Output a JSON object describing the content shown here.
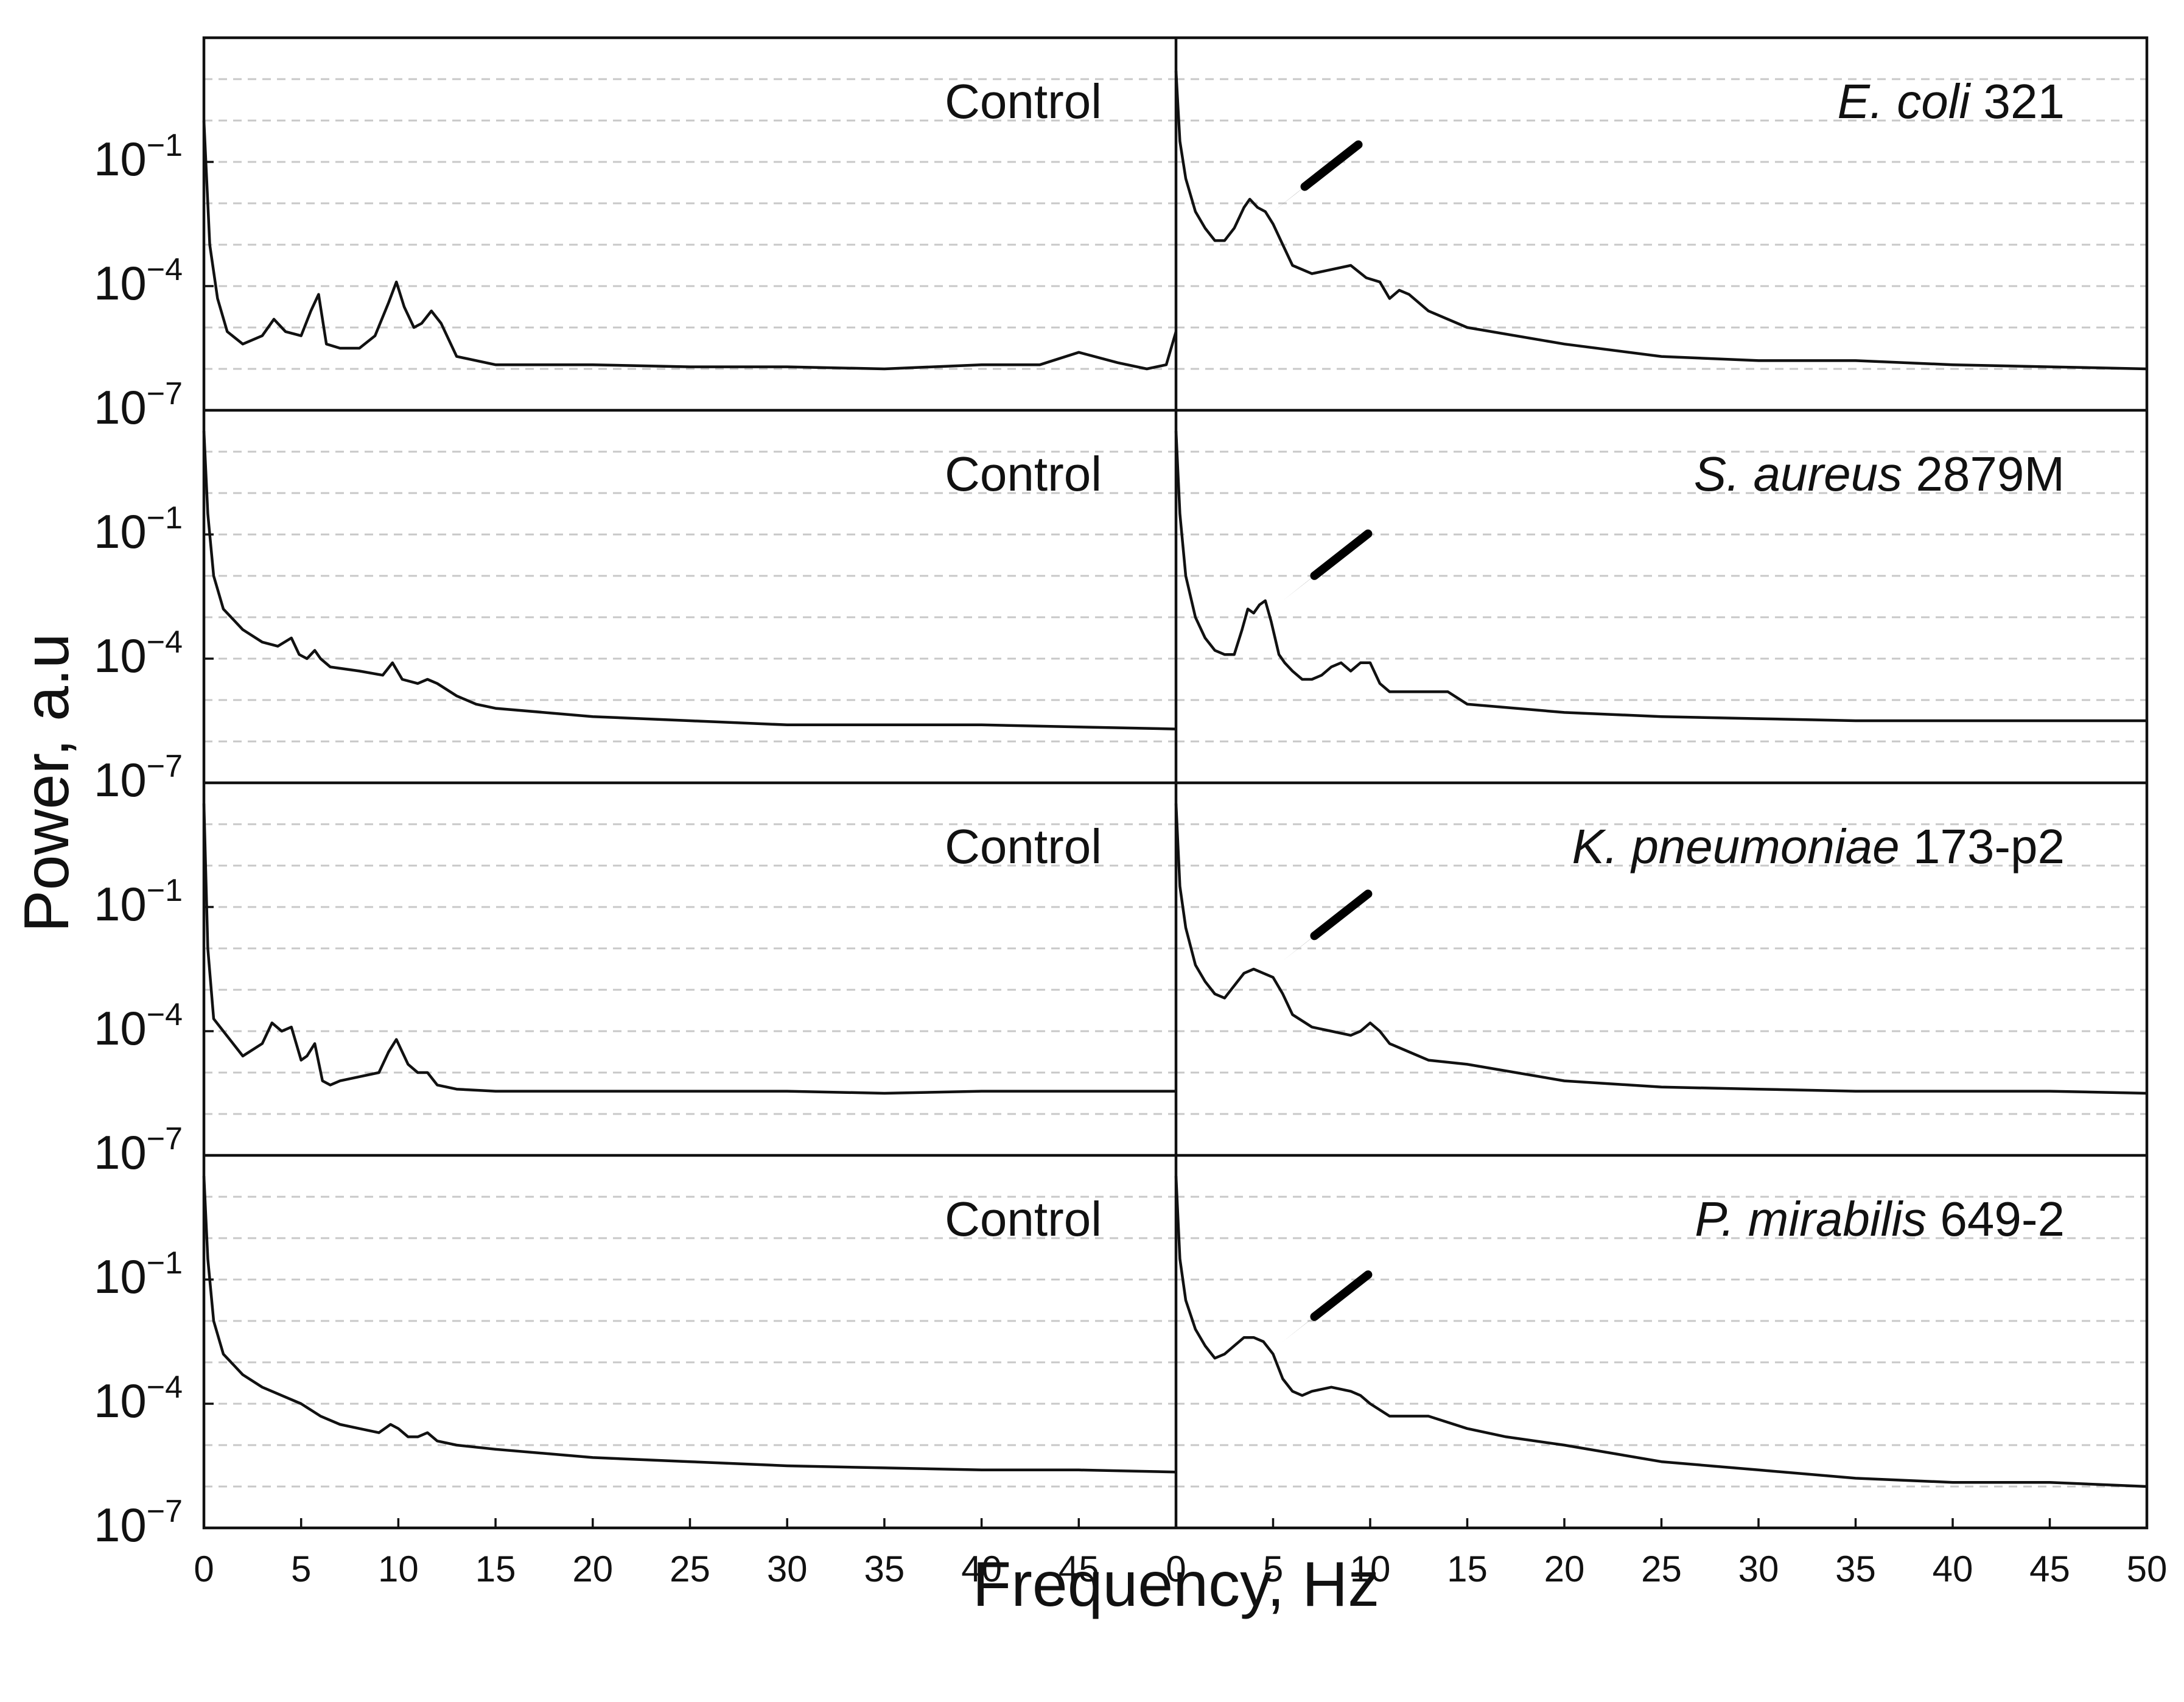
{
  "chart_data": {
    "type": "line",
    "figure": {
      "ylabel": "Power, a.u",
      "xlabel": "Frequency, Hz",
      "xlim": [
        0,
        50
      ],
      "ylim_log10": [
        -7,
        2
      ],
      "y_tick_labels": [
        {
          "base": "10",
          "exp": "−1",
          "log10": -1
        },
        {
          "base": "10",
          "exp": "−4",
          "log10": -4
        },
        {
          "base": "10",
          "exp": "−7",
          "log10": -7
        }
      ],
      "x_ticks_left": [
        {
          "label": "0",
          "value": 0
        },
        {
          "label": "5",
          "value": 5
        },
        {
          "label": "10",
          "value": 10
        },
        {
          "label": "15",
          "value": 15
        },
        {
          "label": "20",
          "value": 20
        },
        {
          "label": "25",
          "value": 25
        },
        {
          "label": "30",
          "value": 30
        },
        {
          "label": "35",
          "value": 35
        },
        {
          "label": "40",
          "value": 40
        },
        {
          "label": "45",
          "value": 45
        }
      ],
      "x_ticks_right": [
        {
          "label": "0",
          "value": 0
        },
        {
          "label": "5",
          "value": 5
        },
        {
          "label": "10",
          "value": 10
        },
        {
          "label": "15",
          "value": 15
        },
        {
          "label": "20",
          "value": 20
        },
        {
          "label": "25",
          "value": 25
        },
        {
          "label": "30",
          "value": 30
        },
        {
          "label": "35",
          "value": 35
        },
        {
          "label": "40",
          "value": 40
        },
        {
          "label": "45",
          "value": 45
        },
        {
          "label": "50",
          "value": 50
        }
      ],
      "grid_log10": [
        1,
        0,
        -1,
        -2,
        -3,
        -4,
        -5,
        -6
      ],
      "grid": "horizontal dashed"
    },
    "panels": [
      {
        "row": 1,
        "side": "left",
        "label": {
          "italic": "",
          "normal": "Control"
        },
        "arrow_at": null,
        "x": [
          0,
          0.3,
          0.7,
          1.2,
          2,
          3,
          3.6,
          4.2,
          5,
          5.5,
          5.9,
          6.3,
          7,
          8,
          8.8,
          9.5,
          9.9,
          10.3,
          10.8,
          11.2,
          11.7,
          12.2,
          13,
          15,
          20,
          25,
          30,
          35,
          40,
          43,
          45,
          47,
          48.5,
          49.5,
          50
        ],
        "log10y": [
          0,
          -3,
          -4.3,
          -5.1,
          -5.4,
          -5.2,
          -4.8,
          -5.1,
          -5.2,
          -4.6,
          -4.2,
          -5.4,
          -5.5,
          -5.5,
          -5.2,
          -4.4,
          -3.9,
          -4.5,
          -5,
          -4.9,
          -4.6,
          -4.9,
          -5.7,
          -5.9,
          -5.9,
          -5.95,
          -5.95,
          -6,
          -5.9,
          -5.9,
          -5.6,
          -5.85,
          -6,
          -5.9,
          -5.1
        ]
      },
      {
        "row": 1,
        "side": "right",
        "label": {
          "italic": "E. coli",
          "normal": " 321"
        },
        "arrow_at": {
          "x": 5,
          "log10y": -2.2
        },
        "x": [
          0,
          0.2,
          0.5,
          1,
          1.5,
          2,
          2.5,
          3,
          3.5,
          3.8,
          4.2,
          4.6,
          5,
          5.5,
          6,
          7,
          8,
          9,
          9.8,
          10.5,
          11,
          11.5,
          12,
          13,
          15,
          20,
          25,
          30,
          35,
          40,
          45,
          50
        ],
        "log10y": [
          1.2,
          -0.5,
          -1.4,
          -2.2,
          -2.6,
          -2.9,
          -2.9,
          -2.6,
          -2.1,
          -1.9,
          -2.1,
          -2.2,
          -2.5,
          -3,
          -3.5,
          -3.7,
          -3.6,
          -3.5,
          -3.8,
          -3.9,
          -4.3,
          -4.1,
          -4.2,
          -4.6,
          -5,
          -5.4,
          -5.7,
          -5.8,
          -5.8,
          -5.9,
          -5.95,
          -6
        ]
      },
      {
        "row": 2,
        "side": "left",
        "label": {
          "italic": "",
          "normal": "Control"
        },
        "arrow_at": null,
        "x": [
          0,
          0.2,
          0.5,
          1,
          2,
          3,
          3.8,
          4.5,
          4.9,
          5.3,
          5.7,
          6,
          6.5,
          8,
          9.2,
          9.7,
          10.2,
          11,
          11.5,
          12,
          13,
          14,
          15,
          20,
          25,
          30,
          35,
          40,
          45,
          50
        ],
        "log10y": [
          1.5,
          -0.5,
          -2,
          -2.8,
          -3.3,
          -3.6,
          -3.7,
          -3.5,
          -3.9,
          -4,
          -3.8,
          -4,
          -4.2,
          -4.3,
          -4.4,
          -4.1,
          -4.5,
          -4.6,
          -4.5,
          -4.6,
          -4.9,
          -5.1,
          -5.2,
          -5.4,
          -5.5,
          -5.6,
          -5.6,
          -5.6,
          -5.65,
          -5.7
        ]
      },
      {
        "row": 2,
        "side": "right",
        "label": {
          "italic": "S. aureus",
          "normal": " 2879M"
        },
        "arrow_at": {
          "x": 5.5,
          "log10y": -2.6
        },
        "x": [
          0,
          0.2,
          0.5,
          1,
          1.5,
          2,
          2.5,
          3,
          3.4,
          3.7,
          4,
          4.3,
          4.6,
          4.9,
          5.3,
          5.6,
          6,
          6.5,
          7,
          7.5,
          8,
          8.5,
          9,
          9.5,
          10,
          10.5,
          11,
          12,
          14,
          15,
          20,
          25,
          30,
          35,
          40,
          45,
          50
        ],
        "log10y": [
          1.5,
          -0.5,
          -2,
          -3,
          -3.5,
          -3.8,
          -3.9,
          -3.9,
          -3.3,
          -2.8,
          -2.9,
          -2.7,
          -2.6,
          -3.1,
          -3.9,
          -4.1,
          -4.3,
          -4.5,
          -4.5,
          -4.4,
          -4.2,
          -4.1,
          -4.3,
          -4.1,
          -4.1,
          -4.6,
          -4.8,
          -4.8,
          -4.8,
          -5.1,
          -5.3,
          -5.4,
          -5.45,
          -5.5,
          -5.5,
          -5.5,
          -5.5
        ]
      },
      {
        "row": 3,
        "side": "left",
        "label": {
          "italic": "",
          "normal": "Control"
        },
        "arrow_at": null,
        "x": [
          0,
          0.2,
          0.5,
          1,
          2,
          3,
          3.5,
          4,
          4.5,
          5,
          5.3,
          5.7,
          6.1,
          6.5,
          7,
          8,
          9,
          9.5,
          9.9,
          10.5,
          11,
          11.5,
          12,
          13,
          15,
          20,
          25,
          30,
          35,
          40,
          45,
          50
        ],
        "log10y": [
          1.5,
          -2,
          -3.7,
          -4,
          -4.6,
          -4.3,
          -3.8,
          -4,
          -3.9,
          -4.7,
          -4.6,
          -4.3,
          -5.2,
          -5.3,
          -5.2,
          -5.1,
          -5,
          -4.5,
          -4.2,
          -4.8,
          -5,
          -5,
          -5.3,
          -5.4,
          -5.45,
          -5.45,
          -5.45,
          -5.45,
          -5.5,
          -5.45,
          -5.45,
          -5.45
        ]
      },
      {
        "row": 3,
        "side": "right",
        "label": {
          "italic": "K. pneumoniae",
          "normal": " 173-p2"
        },
        "arrow_at": {
          "x": 5.5,
          "log10y": -2.3
        },
        "x": [
          0,
          0.2,
          0.5,
          1,
          1.5,
          2,
          2.5,
          3,
          3.5,
          4,
          4.5,
          5,
          5.5,
          6,
          7,
          8,
          9,
          9.5,
          10,
          10.5,
          11,
          12,
          13,
          15,
          20,
          25,
          30,
          35,
          40,
          45,
          50
        ],
        "log10y": [
          1.5,
          -0.5,
          -1.5,
          -2.4,
          -2.8,
          -3.1,
          -3.2,
          -2.9,
          -2.6,
          -2.5,
          -2.6,
          -2.7,
          -3.1,
          -3.6,
          -3.9,
          -4,
          -4.1,
          -4,
          -3.8,
          -4,
          -4.3,
          -4.5,
          -4.7,
          -4.8,
          -5.2,
          -5.35,
          -5.4,
          -5.45,
          -5.45,
          -5.45,
          -5.5
        ]
      },
      {
        "row": 4,
        "side": "left",
        "label": {
          "italic": "",
          "normal": "Control"
        },
        "arrow_at": null,
        "x": [
          0,
          0.2,
          0.5,
          1,
          2,
          3,
          4,
          5,
          6,
          7,
          8,
          9,
          9.6,
          10,
          10.5,
          11,
          11.5,
          12,
          13,
          15,
          20,
          25,
          30,
          35,
          40,
          45,
          50
        ],
        "log10y": [
          1.5,
          -0.5,
          -2,
          -2.8,
          -3.3,
          -3.6,
          -3.8,
          -4,
          -4.3,
          -4.5,
          -4.6,
          -4.7,
          -4.5,
          -4.6,
          -4.8,
          -4.8,
          -4.7,
          -4.9,
          -5,
          -5.1,
          -5.3,
          -5.4,
          -5.5,
          -5.55,
          -5.6,
          -5.6,
          -5.65
        ]
      },
      {
        "row": 4,
        "side": "right",
        "label": {
          "italic": "P. mirabilis",
          "normal": " 649-2"
        },
        "arrow_at": {
          "x": 5.5,
          "log10y": -2.5
        },
        "x": [
          0,
          0.2,
          0.5,
          1,
          1.5,
          2,
          2.5,
          3,
          3.5,
          4,
          4.5,
          5,
          5.5,
          6,
          6.5,
          7,
          8,
          9,
          9.5,
          10,
          11,
          12,
          13,
          15,
          17,
          20,
          25,
          30,
          35,
          40,
          45,
          50
        ],
        "log10y": [
          1.5,
          -0.5,
          -1.5,
          -2.2,
          -2.6,
          -2.9,
          -2.8,
          -2.6,
          -2.4,
          -2.4,
          -2.5,
          -2.8,
          -3.4,
          -3.7,
          -3.8,
          -3.7,
          -3.6,
          -3.7,
          -3.8,
          -4,
          -4.3,
          -4.3,
          -4.3,
          -4.6,
          -4.8,
          -5,
          -5.4,
          -5.6,
          -5.8,
          -5.9,
          -5.9,
          -6
        ]
      }
    ]
  }
}
